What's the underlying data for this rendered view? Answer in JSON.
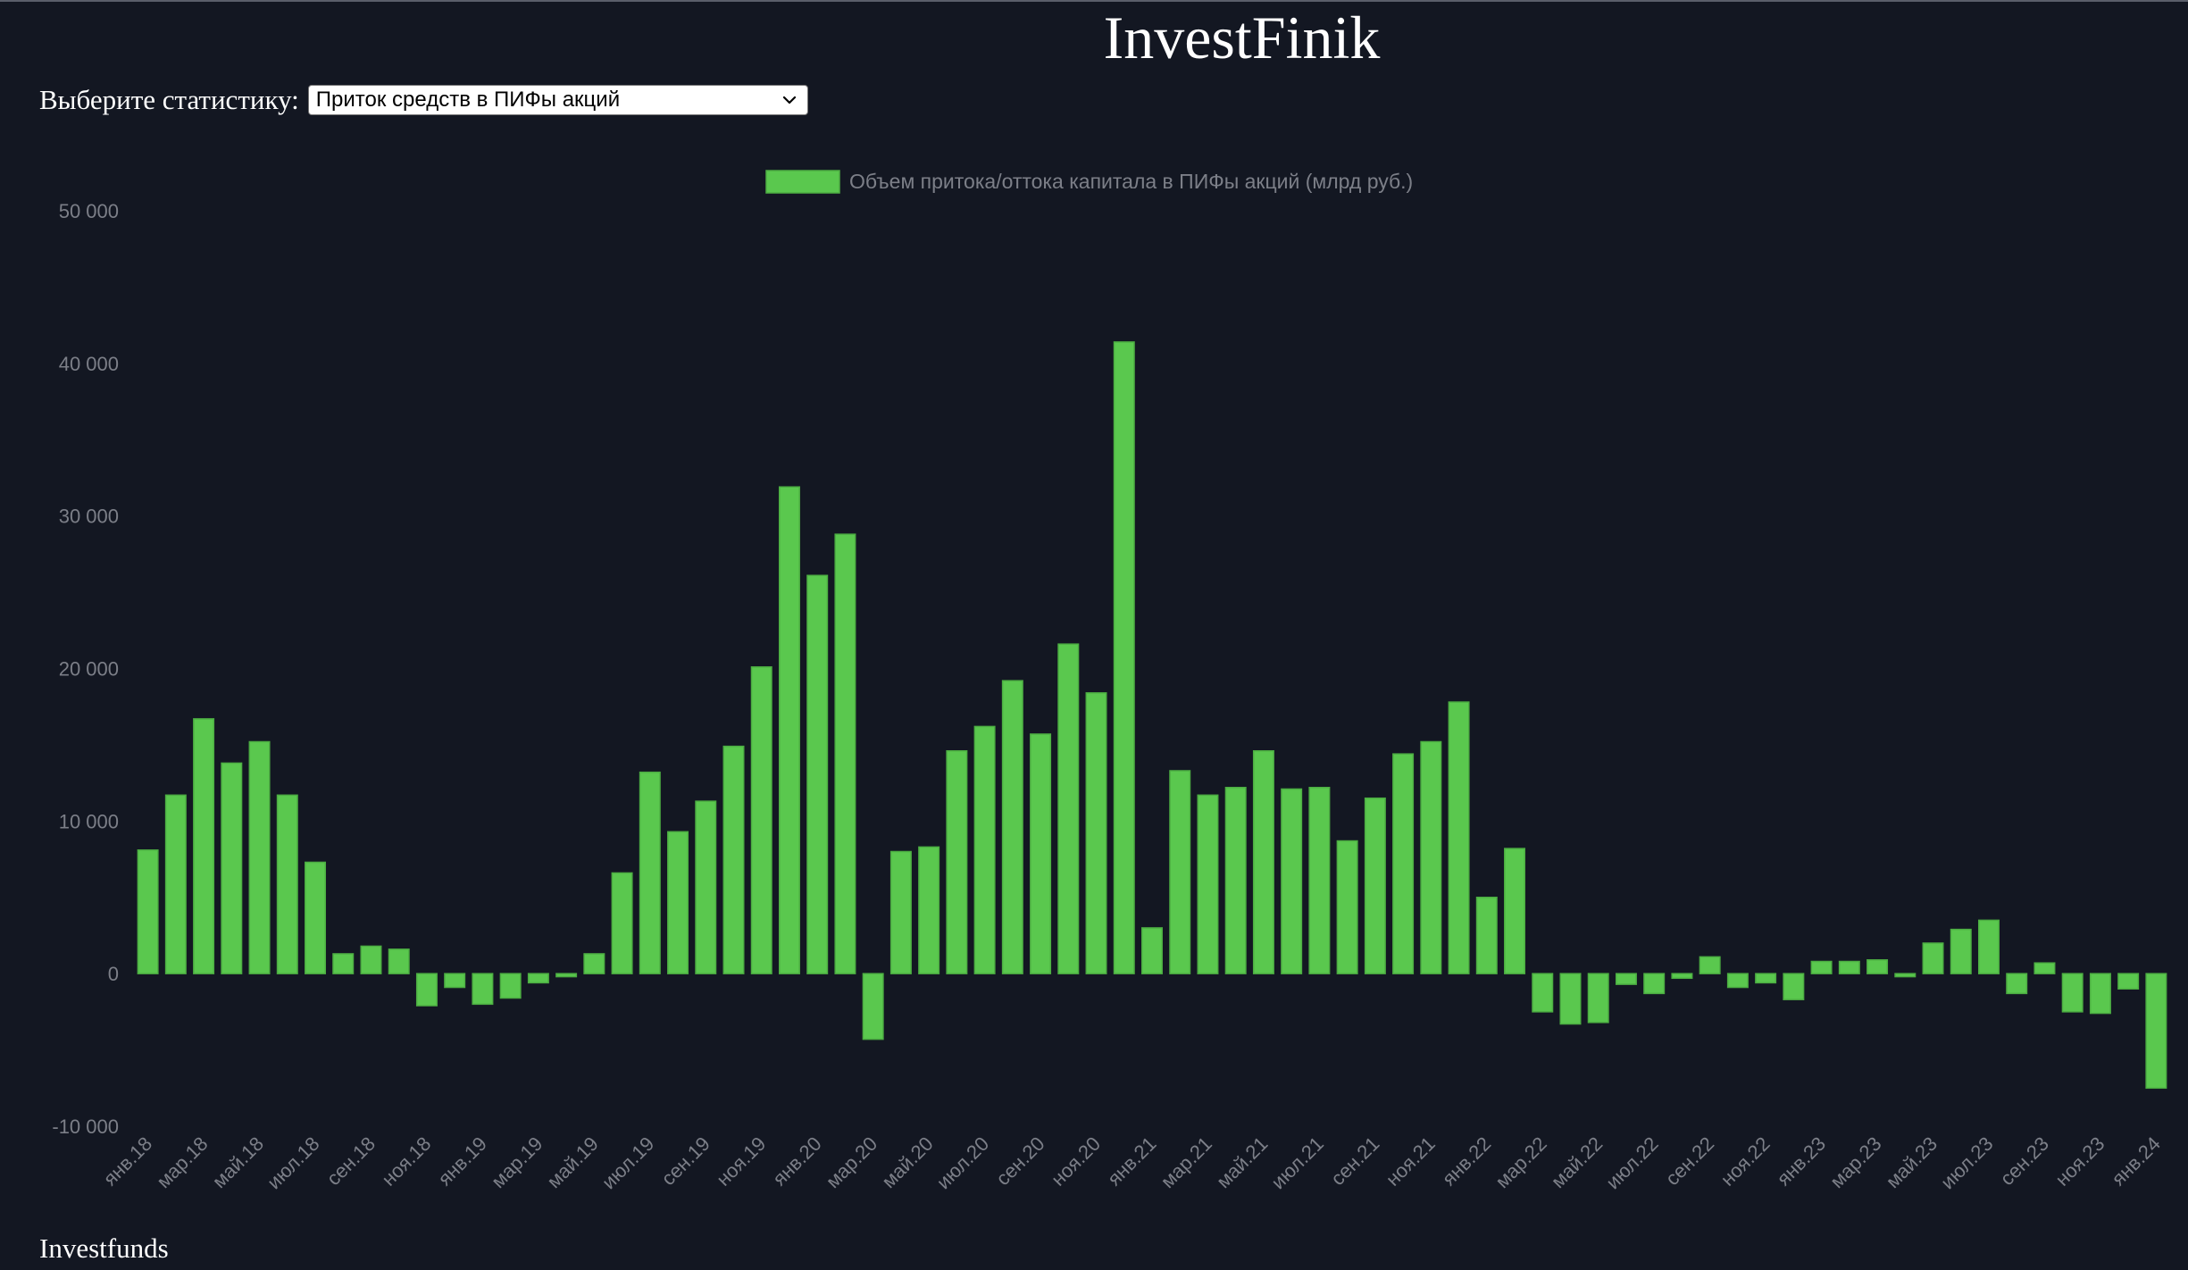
{
  "app": {
    "title": "InvestFinik"
  },
  "selector": {
    "label": "Выберите статистику:",
    "selected": "Приток средств в ПИФы акций"
  },
  "footer": {
    "text": "Investfunds"
  },
  "colors": {
    "background": "#131722",
    "bar": "#5ac84e",
    "bar_border": "#4cae42",
    "axis_text": "#7c7f88",
    "grid": "#262a35"
  },
  "chart_data": {
    "type": "bar",
    "legend_position": "top",
    "grid": false,
    "ylim": [
      -10000,
      50000
    ],
    "y_ticks": [
      -10000,
      0,
      10000,
      20000,
      30000,
      40000,
      50000
    ],
    "y_tick_labels": [
      "-10 000",
      "0",
      "10 000",
      "20 000",
      "30 000",
      "40 000",
      "50 000"
    ],
    "series": [
      {
        "name": "Объем притока/оттока капитала в ПИФы акций (млрд руб.)",
        "values": [
          8100,
          11700,
          16700,
          13800,
          15200,
          11700,
          7300,
          1300,
          1800,
          1600,
          -2100,
          -900,
          -2000,
          -1600,
          -600,
          -200,
          1300,
          6600,
          13200,
          9300,
          11300,
          14900,
          20100,
          31900,
          26100,
          28800,
          -4300,
          8000,
          8300,
          14600,
          16200,
          19200,
          15700,
          21600,
          18400,
          41400,
          3000,
          13300,
          11700,
          12200,
          14600,
          12100,
          12200,
          8700,
          11500,
          14400,
          15200,
          17800,
          5000,
          8200,
          -2500,
          -3300,
          -3200,
          -700,
          -1300,
          -300,
          1100,
          -900,
          -600,
          -1700,
          800,
          800,
          900,
          -200,
          2000,
          2900,
          3500,
          -1300,
          700,
          -2500,
          -2600,
          -1000,
          -7500
        ]
      }
    ],
    "x_labels": [
      "янв.18",
      "мар.18",
      "май.18",
      "июл.18",
      "сен.18",
      "ноя.18",
      "янв.19",
      "мар.19",
      "май.19",
      "июл.19",
      "сен.19",
      "ноя.19",
      "янв.20",
      "мар.20",
      "май.20",
      "июл.20",
      "сен.20",
      "ноя.20",
      "янв.21",
      "мар.21",
      "май.21",
      "июл.21",
      "сен.21",
      "ноя.21",
      "янв.22",
      "мар.22",
      "май.22",
      "июл.22",
      "сен.22",
      "ноя.22",
      "янв.23",
      "мар.23",
      "май.23",
      "июл.23",
      "сен.23",
      "ноя.23",
      "янв.24"
    ]
  }
}
